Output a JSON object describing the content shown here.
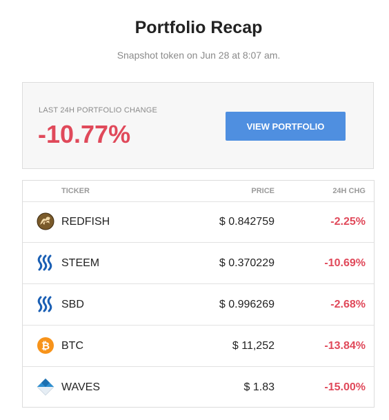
{
  "header": {
    "title": "Portfolio Recap",
    "subtitle": "Snapshot token on Jun 28 at 8:07 am."
  },
  "summary": {
    "label": "LAST 24H PORTFOLIO CHANGE",
    "value": "-10.77%",
    "button_label": "VIEW PORTFOLIO",
    "negative_color": "#e0495a",
    "button_color": "#4f8fe0"
  },
  "table": {
    "columns": [
      "TICKER",
      "PRICE",
      "24H CHG"
    ],
    "rows": [
      {
        "icon": "redfish-icon",
        "ticker": "REDFISH",
        "price": "$ 0.842759",
        "change": "-2.25%"
      },
      {
        "icon": "steem-icon",
        "ticker": "STEEM",
        "price": "$ 0.370229",
        "change": "-10.69%"
      },
      {
        "icon": "sbd-icon",
        "ticker": "SBD",
        "price": "$ 0.996269",
        "change": "-2.68%"
      },
      {
        "icon": "btc-icon",
        "ticker": "BTC",
        "price": "$ 11,252",
        "change": "-13.84%"
      },
      {
        "icon": "waves-icon",
        "ticker": "WAVES",
        "price": "$ 1.83",
        "change": "-15.00%"
      }
    ]
  }
}
